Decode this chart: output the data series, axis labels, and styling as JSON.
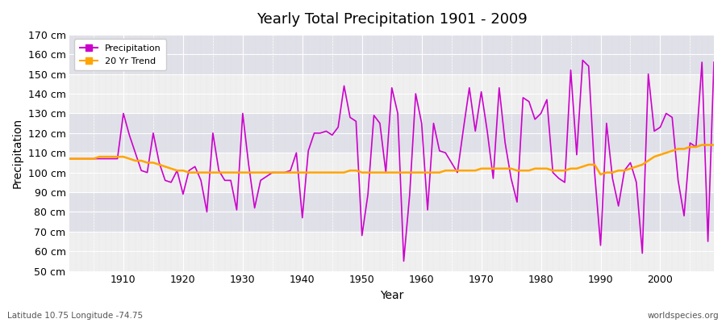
{
  "title": "Yearly Total Precipitation 1901 - 2009",
  "xlabel": "Year",
  "ylabel": "Precipitation",
  "lat_lon_label": "Latitude 10.75 Longitude -74.75",
  "source_label": "worldspecies.org",
  "precip_color": "#CC00CC",
  "trend_color": "#FFA500",
  "bg_color": "#FFFFFF",
  "plot_bg_light": "#EFEFEF",
  "plot_bg_dark": "#E0E0E8",
  "grid_color": "#FFFFFF",
  "grid_minor_color": "#DADAE0",
  "ylim": [
    50,
    170
  ],
  "ytick_step": 10,
  "years": [
    1901,
    1902,
    1903,
    1904,
    1905,
    1906,
    1907,
    1908,
    1909,
    1910,
    1911,
    1912,
    1913,
    1914,
    1915,
    1916,
    1917,
    1918,
    1919,
    1920,
    1921,
    1922,
    1923,
    1924,
    1925,
    1926,
    1927,
    1928,
    1929,
    1930,
    1931,
    1932,
    1933,
    1934,
    1935,
    1936,
    1937,
    1938,
    1939,
    1940,
    1941,
    1942,
    1943,
    1944,
    1945,
    1946,
    1947,
    1948,
    1949,
    1950,
    1951,
    1952,
    1953,
    1954,
    1955,
    1956,
    1957,
    1958,
    1959,
    1960,
    1961,
    1962,
    1963,
    1964,
    1965,
    1966,
    1967,
    1968,
    1969,
    1970,
    1971,
    1972,
    1973,
    1974,
    1975,
    1976,
    1977,
    1978,
    1979,
    1980,
    1981,
    1982,
    1983,
    1984,
    1985,
    1986,
    1987,
    1988,
    1989,
    1990,
    1991,
    1992,
    1993,
    1994,
    1995,
    1996,
    1997,
    1998,
    1999,
    2000,
    2001,
    2002,
    2003,
    2004,
    2005,
    2006,
    2007,
    2008,
    2009
  ],
  "precip": [
    107,
    107,
    107,
    107,
    107,
    107,
    107,
    107,
    107,
    130,
    119,
    110,
    101,
    100,
    120,
    105,
    96,
    95,
    101,
    89,
    101,
    103,
    96,
    80,
    120,
    101,
    96,
    96,
    81,
    130,
    104,
    82,
    96,
    98,
    100,
    100,
    100,
    101,
    110,
    77,
    111,
    120,
    120,
    121,
    119,
    123,
    144,
    128,
    126,
    68,
    89,
    129,
    125,
    100,
    143,
    130,
    55,
    89,
    140,
    125,
    81,
    125,
    111,
    110,
    105,
    100,
    122,
    143,
    121,
    141,
    121,
    97,
    143,
    115,
    97,
    85,
    138,
    136,
    127,
    130,
    137,
    100,
    97,
    95,
    152,
    109,
    157,
    154,
    100,
    63,
    125,
    97,
    83,
    101,
    105,
    95,
    59,
    150,
    121,
    123,
    130,
    128,
    96,
    78,
    115,
    113,
    156,
    65,
    156
  ],
  "trend": [
    107,
    107,
    107,
    107,
    107,
    108,
    108,
    108,
    108,
    108,
    107,
    106,
    106,
    105,
    105,
    104,
    103,
    102,
    101,
    101,
    100,
    100,
    100,
    100,
    100,
    100,
    100,
    100,
    100,
    100,
    100,
    100,
    100,
    100,
    100,
    100,
    100,
    100,
    100,
    100,
    100,
    100,
    100,
    100,
    100,
    100,
    100,
    101,
    101,
    100,
    100,
    100,
    100,
    100,
    100,
    100,
    100,
    100,
    100,
    100,
    100,
    100,
    100,
    101,
    101,
    101,
    101,
    101,
    101,
    102,
    102,
    102,
    102,
    102,
    102,
    101,
    101,
    101,
    102,
    102,
    102,
    101,
    101,
    101,
    102,
    102,
    103,
    104,
    104,
    99,
    100,
    100,
    101,
    101,
    102,
    103,
    104,
    106,
    108,
    109,
    110,
    111,
    112,
    112,
    113,
    113,
    114,
    114,
    114
  ]
}
